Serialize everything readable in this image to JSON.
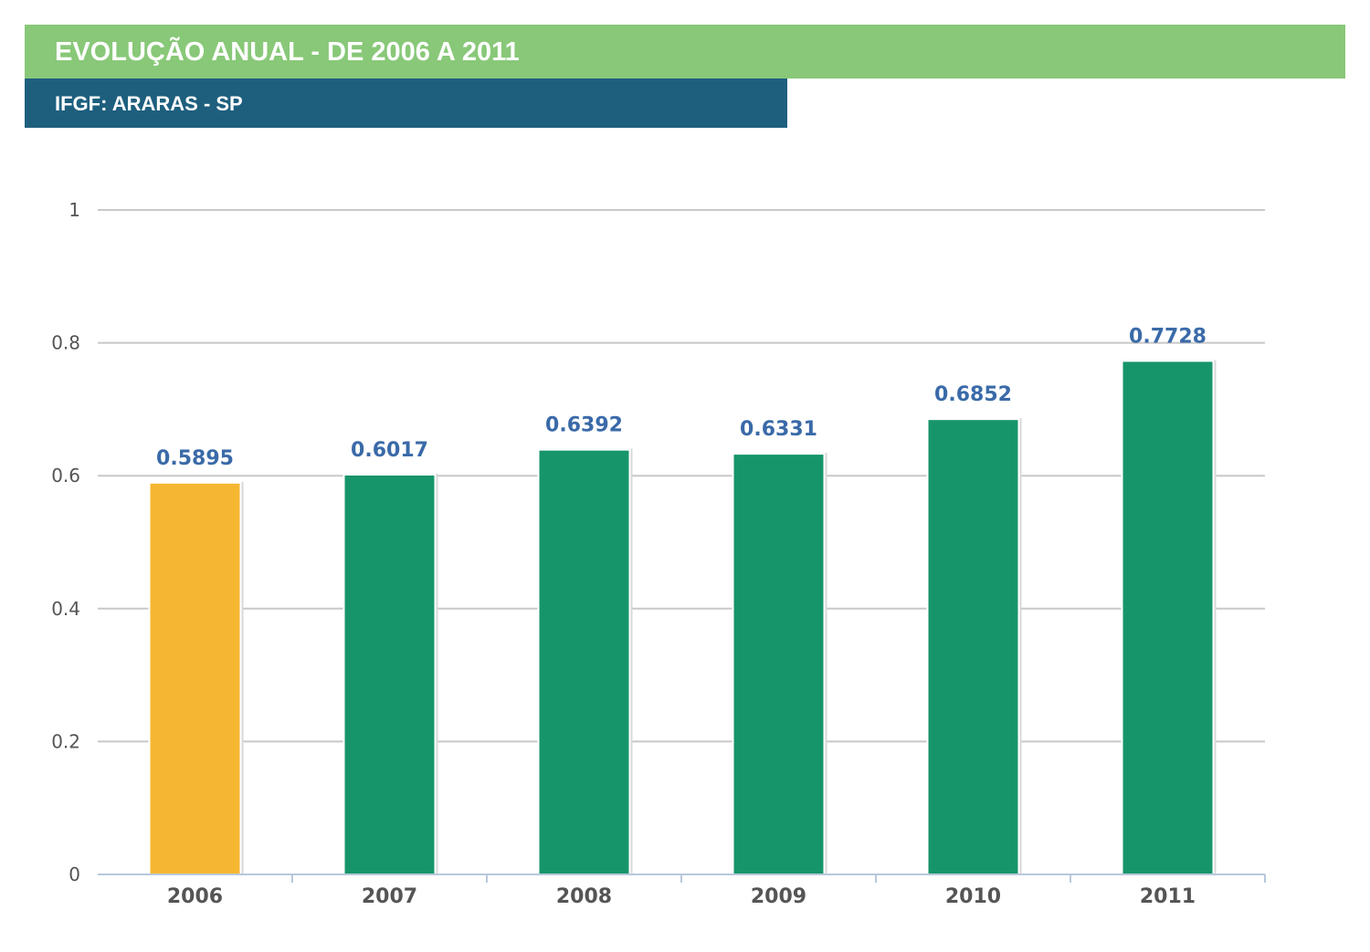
{
  "header": {
    "title": "EVOLUÇÃO ANUAL - DE 2006 A 2011",
    "subtitle": "IFGF: ARARAS - SP"
  },
  "colors": {
    "title_bar": "#88c878",
    "subtitle_bar": "#1e5f7e",
    "highlight_bar": "#f5b731",
    "bar": "#17956a",
    "data_label": "#3a6aa8",
    "grid": "#c8c8c8",
    "axis": "#b8c8dc"
  },
  "chart_data": {
    "type": "bar",
    "title": "EVOLUÇÃO ANUAL - DE 2006 A 2011",
    "subtitle": "IFGF: ARARAS - SP",
    "categories": [
      "2006",
      "2007",
      "2008",
      "2009",
      "2010",
      "2011"
    ],
    "values": [
      0.5895,
      0.6017,
      0.6392,
      0.6331,
      0.6852,
      0.7728
    ],
    "data_labels": [
      "0.5895",
      "0.6017",
      "0.6392",
      "0.6331",
      "0.6852",
      "0.7728"
    ],
    "highlight_index": 0,
    "xlabel": "",
    "ylabel": "",
    "ylim": [
      0,
      1
    ],
    "yticks": [
      0,
      0.2,
      0.4,
      0.6,
      0.8,
      1
    ],
    "ytick_labels": [
      "0",
      "0.2",
      "0.4",
      "0.6",
      "0.8",
      "1"
    ],
    "grid": true,
    "legend": "none"
  }
}
